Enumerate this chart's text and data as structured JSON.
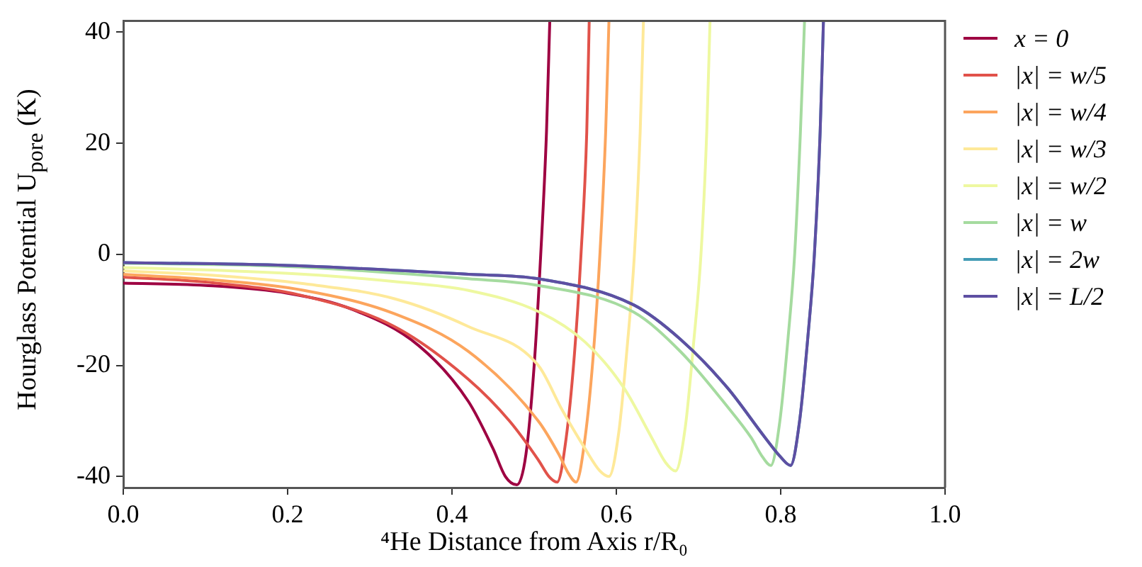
{
  "chart_data": {
    "type": "line",
    "xlabel": "⁴He Distance from Axis r/R₀",
    "ylabel": "Hourglass Potential U$_{pore}$ (K)",
    "xlim": [
      0,
      1
    ],
    "xticks": [
      {
        "value": 0,
        "label": "0.0"
      },
      {
        "value": 0.2,
        "label": "0.2"
      },
      {
        "value": 0.4,
        "label": "0.4"
      },
      {
        "value": 0.6,
        "label": "0.6"
      },
      {
        "value": 0.8,
        "label": "0.8"
      },
      {
        "value": 1,
        "label": "1.0"
      }
    ],
    "ylim": [
      -42,
      42
    ],
    "yticks": [
      -40,
      -20,
      0,
      20,
      40
    ],
    "grid": false,
    "legend": "right",
    "marker": "none",
    "line_style": "solid",
    "series": [
      {
        "name": "x = 0",
        "color": "#9e0142",
        "x": [
          0,
          0.1,
          0.2,
          0.28,
          0.36,
          0.42,
          0.45,
          0.465,
          0.479,
          0.49,
          0.5,
          0.508,
          0.515,
          0.519
        ],
        "values": [
          -5.2,
          -5.6,
          -7,
          -10,
          -16.5,
          -26.5,
          -35,
          -40,
          -41.5,
          -36,
          -20,
          0,
          22,
          42
        ]
      },
      {
        "name": "|x| = w/5",
        "color": "#e1524a",
        "x": [
          0,
          0.1,
          0.22,
          0.33,
          0.42,
          0.47,
          0.505,
          0.518,
          0.528,
          0.539,
          0.549,
          0.557,
          0.564,
          0.567
        ],
        "values": [
          -4.1,
          -5,
          -7.5,
          -13,
          -22.5,
          -30,
          -37,
          -40,
          -41,
          -33,
          -18,
          0,
          22,
          42
        ]
      },
      {
        "name": "|x| = w/4",
        "color": "#fca55d",
        "x": [
          0,
          0.1,
          0.22,
          0.33,
          0.42,
          0.505,
          0.53,
          0.542,
          0.551,
          0.562,
          0.572,
          0.58,
          0.587,
          0.591
        ],
        "values": [
          -3.6,
          -4.5,
          -6.5,
          -10.7,
          -17.5,
          -30,
          -36,
          -39.5,
          -41,
          -33,
          -18,
          0,
          22,
          42
        ]
      },
      {
        "name": "|x| = w/3",
        "color": "#fee999",
        "x": [
          0,
          0.1,
          0.22,
          0.33,
          0.42,
          0.505,
          0.534,
          0.562,
          0.58,
          0.591,
          0.603,
          0.613,
          0.622,
          0.629,
          0.633
        ],
        "values": [
          -3,
          -3.7,
          -5.3,
          -8,
          -13,
          -20,
          -28,
          -35,
          -39,
          -40,
          -32,
          -17,
          0,
          22,
          42
        ]
      },
      {
        "name": "|x| = w/2",
        "color": "#eef8a0",
        "x": [
          0,
          0.1,
          0.22,
          0.33,
          0.42,
          0.505,
          0.562,
          0.609,
          0.643,
          0.66,
          0.672,
          0.684,
          0.694,
          0.703,
          0.71,
          0.714
        ],
        "values": [
          -2.4,
          -2.8,
          -3.6,
          -4.9,
          -6.5,
          -10.3,
          -15.8,
          -24,
          -33,
          -37.5,
          -39,
          -31,
          -16,
          0,
          22,
          42
        ]
      },
      {
        "name": "|x| = w",
        "color": "#a5db9f",
        "x": [
          0,
          0.2,
          0.42,
          0.505,
          0.621,
          0.678,
          0.735,
          0.764,
          0.778,
          0.788,
          0.799,
          0.809,
          0.817,
          0.824,
          0.829
        ],
        "values": [
          -1.6,
          -2.2,
          -4.4,
          -5.6,
          -10.4,
          -17.5,
          -27.4,
          -33,
          -36.5,
          -38,
          -30,
          -15,
          0,
          22,
          42
        ]
      },
      {
        "name": "|x| = 2w",
        "color": "#439bb5",
        "x": [
          0,
          0.2,
          0.42,
          0.505,
          0.621,
          0.678,
          0.735,
          0.781,
          0.8,
          0.812,
          0.823,
          0.833,
          0.841,
          0.848,
          0.852
        ],
        "values": [
          -1.5,
          -2,
          -3.6,
          -4.4,
          -9.1,
          -15.3,
          -24,
          -33,
          -36.5,
          -38,
          -30,
          -15,
          0,
          22,
          42
        ]
      },
      {
        "name": "|x| = L/2",
        "color": "#5e4fa2",
        "x": [
          0,
          0.2,
          0.42,
          0.505,
          0.621,
          0.678,
          0.735,
          0.781,
          0.8,
          0.812,
          0.823,
          0.833,
          0.841,
          0.848,
          0.852
        ],
        "values": [
          -1.5,
          -2,
          -3.6,
          -4.4,
          -9.1,
          -15.3,
          -24,
          -33,
          -36.5,
          -38,
          -30,
          -15,
          0,
          22,
          42
        ]
      }
    ]
  }
}
